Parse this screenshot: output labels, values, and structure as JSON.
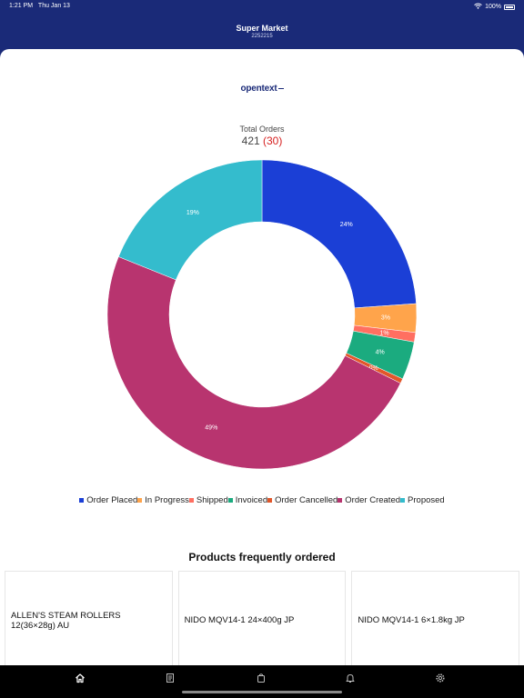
{
  "status_bar": {
    "time": "1:21 PM",
    "date": "Thu Jan 13",
    "battery": "100%"
  },
  "header": {
    "title": "Super Market",
    "subtitle": "2252215"
  },
  "brand": {
    "logo_text": "opentext"
  },
  "summary": {
    "label": "Total Orders",
    "total": "421",
    "new_count": "(30)"
  },
  "chart_data": {
    "type": "pie",
    "donut": true,
    "legend_position": "bottom",
    "slices": [
      {
        "name": "Order Placed",
        "value": 24,
        "label": "24%",
        "color": "#1b3fd6"
      },
      {
        "name": "In Progress",
        "value": 3,
        "label": "3%",
        "color": "#ffa44b"
      },
      {
        "name": "Shipped",
        "value": 1,
        "label": "1%",
        "color": "#ff6f61"
      },
      {
        "name": "Invoiced",
        "value": 4,
        "label": "4%",
        "color": "#1bab7f"
      },
      {
        "name": "Order Cancelled",
        "value": 0.5,
        "label": "0%",
        "color": "#e2572a"
      },
      {
        "name": "Order Created",
        "value": 49,
        "label": "49%",
        "color": "#b8346f"
      },
      {
        "name": "Proposed",
        "value": 19,
        "label": "19%",
        "color": "#34bccd"
      }
    ]
  },
  "products": {
    "title": "Products frequently ordered",
    "items": [
      {
        "name": "ALLEN'S STEAM ROLLERS 12(36×28g) AU"
      },
      {
        "name": "NIDO MQV14-1 24×400g JP"
      },
      {
        "name": "NIDO MQV14-1 6×1.8kg JP"
      }
    ]
  },
  "tab_bar": {
    "icons": [
      "home-icon",
      "catalog-icon",
      "orders-icon",
      "notifications-icon",
      "settings-icon"
    ],
    "active_color": "#ffffff",
    "inactive_color": "#bbbbbb"
  }
}
